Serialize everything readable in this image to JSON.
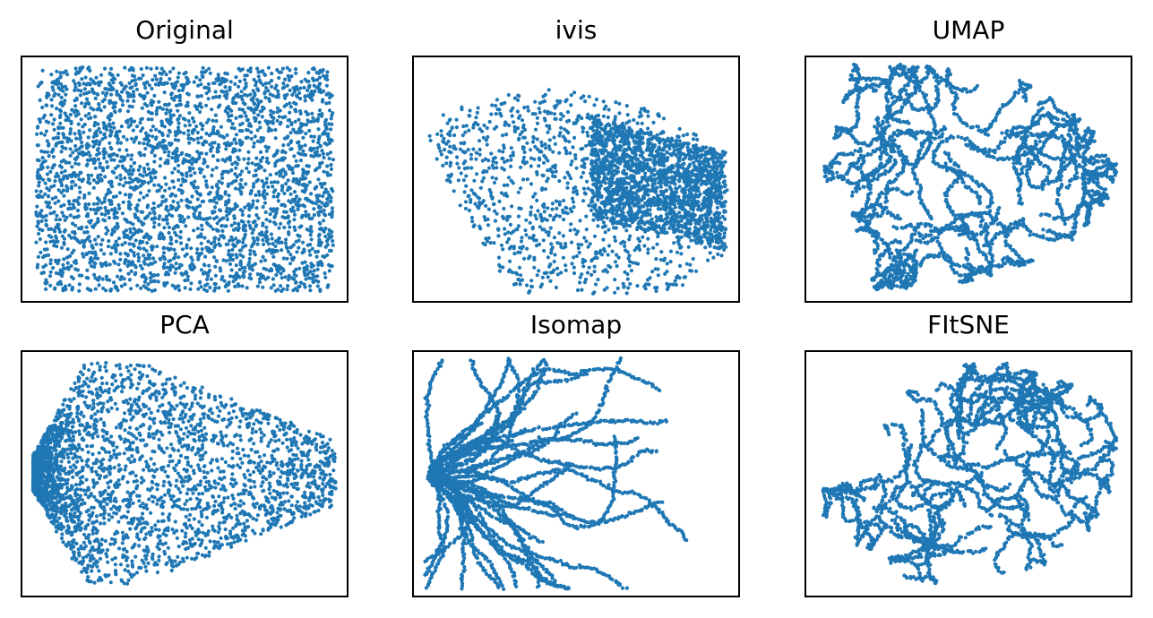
{
  "figure": {
    "point_color": "#1f77b4"
  },
  "chart_data": [
    {
      "type": "scatter",
      "title": "Original",
      "shape": "uniform-square",
      "n_points": 3000,
      "axes_ticks_visible": false,
      "grid": false,
      "legend": "none"
    },
    {
      "type": "scatter",
      "title": "ivis",
      "shape": "fan-with-dense-arc",
      "n_points": 3000,
      "axes_ticks_visible": false,
      "grid": false,
      "legend": "none"
    },
    {
      "type": "scatter",
      "title": "UMAP",
      "shape": "filament-network",
      "n_points": 3000,
      "axes_ticks_visible": false,
      "grid": false,
      "legend": "none"
    },
    {
      "type": "scatter",
      "title": "PCA",
      "shape": "sideways-cone",
      "n_points": 3000,
      "axes_ticks_visible": false,
      "grid": false,
      "legend": "none"
    },
    {
      "type": "scatter",
      "title": "Isomap",
      "shape": "branching-cone",
      "n_points": 3000,
      "axes_ticks_visible": false,
      "grid": false,
      "legend": "none"
    },
    {
      "type": "scatter",
      "title": "FItSNE",
      "shape": "filament-network-lobed",
      "n_points": 3000,
      "axes_ticks_visible": false,
      "grid": false,
      "legend": "none"
    }
  ]
}
